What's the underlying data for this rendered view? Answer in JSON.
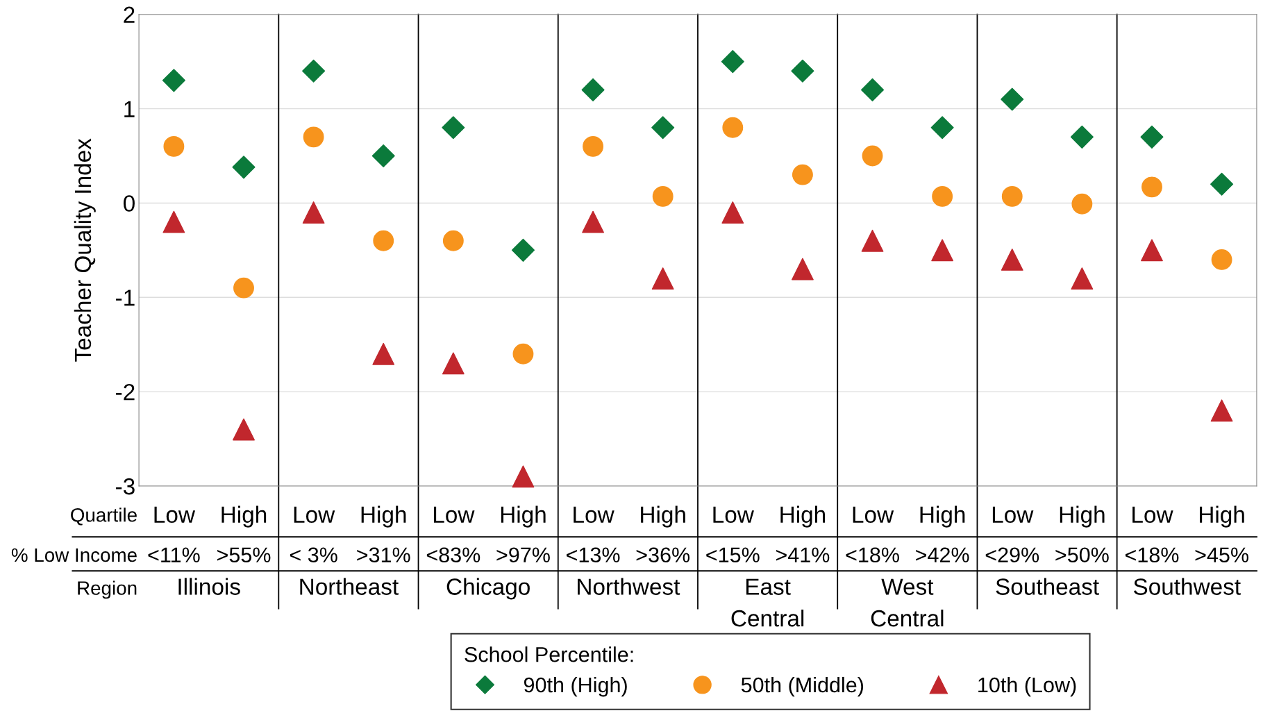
{
  "chart_data": {
    "type": "scatter",
    "ylabel": "Teacher Quality Index",
    "categories": [
      "<11%",
      ">55%",
      "< 3%",
      ">31%",
      "<83%",
      ">97%",
      "<13%",
      ">36%",
      "<15%",
      ">41%",
      "<18%",
      ">42%",
      "<29%",
      ">50%",
      "<18%",
      ">45%"
    ],
    "annotations": [
      "Quartile",
      "% Low Income",
      "Region",
      "Low",
      "High",
      "Low",
      "High",
      "Low",
      "High",
      "Low",
      "High",
      "Low",
      "High",
      "Low",
      "High",
      "Low",
      "High",
      "Low",
      "High",
      "Illinois",
      "Northeast",
      "Chicago",
      "Northwest",
      "East\nCentral",
      "West\nCentral",
      "Southeast",
      "Southwest"
    ],
    "legend_title": "School Percentile:",
    "series": [
      {
        "name": "90th (High)",
        "color": "#0b7a3b",
        "marker": "diamond",
        "values": [
          1.3,
          0.38,
          1.4,
          0.5,
          0.8,
          -0.5,
          1.2,
          0.8,
          1.5,
          1.4,
          1.2,
          0.8,
          1.1,
          0.7,
          0.7,
          0.2
        ]
      },
      {
        "name": "50th (Middle)",
        "color": "#f7941d",
        "marker": "circle",
        "values": [
          0.6,
          -0.9,
          0.7,
          -0.4,
          -0.4,
          -1.6,
          0.6,
          0.07,
          0.8,
          0.3,
          0.5,
          0.07,
          0.07,
          -0.01,
          0.17,
          -0.6
        ]
      },
      {
        "name": "10th (Low)",
        "color": "#c1272d",
        "marker": "triangle",
        "values": [
          -0.2,
          -2.4,
          -0.1,
          -1.6,
          -1.7,
          -2.9,
          -0.2,
          -0.8,
          -0.1,
          -0.7,
          -0.4,
          -0.5,
          -0.6,
          -0.8,
          -0.5,
          -2.2
        ]
      }
    ],
    "ylim": [
      -3,
      2
    ],
    "yticks": [
      -3,
      -2,
      -1,
      0,
      1,
      2
    ],
    "grid": "y",
    "legend": "bottom"
  }
}
